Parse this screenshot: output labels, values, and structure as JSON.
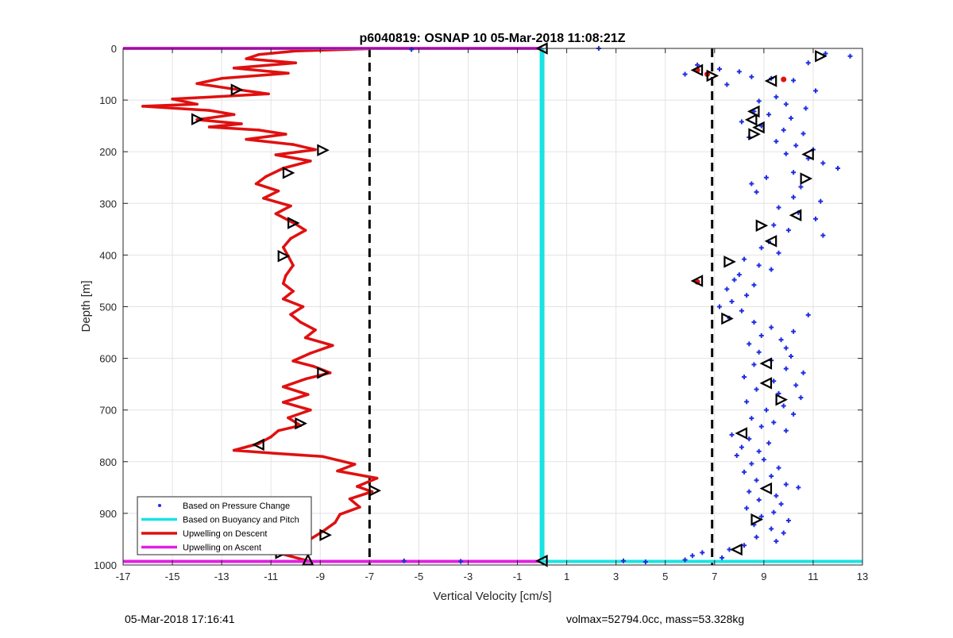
{
  "chart_data": {
    "type": "scatter",
    "title": "p6040819: OSNAP 10 05-Mar-2018 11:08:21Z",
    "xlabel": "Vertical Velocity [cm/s]",
    "ylabel": "Depth [m]",
    "xlim": [
      -17,
      13
    ],
    "ylim": [
      0,
      1000
    ],
    "y_reversed": true,
    "xticks": [
      -17,
      -15,
      -13,
      -11,
      -9,
      -7,
      -5,
      -3,
      -1,
      1,
      3,
      5,
      7,
      9,
      11,
      13
    ],
    "yticks": [
      0,
      100,
      200,
      300,
      400,
      500,
      600,
      700,
      800,
      900,
      1000
    ],
    "grid": true,
    "legend_location": "bottom-left",
    "legend": [
      {
        "label": "Based on Pressure Change",
        "color": "#1f2ee0",
        "style": "dot"
      },
      {
        "label": "Based on Buoyancy and Pitch",
        "color": "#19e3e3",
        "style": "line"
      },
      {
        "label": "Upwelling on Descent",
        "color": "#e01010",
        "style": "line"
      },
      {
        "label": "Upwelling on Ascent",
        "color": "#e020e0",
        "style": "line"
      }
    ],
    "threshold_lines": [
      -7,
      6.9
    ],
    "series": [
      {
        "name": "Upwelling on Descent",
        "color": "#e01010",
        "kind": "line",
        "points": [
          [
            -6.6,
            0
          ],
          [
            -10,
            5
          ],
          [
            -11.5,
            12
          ],
          [
            -12,
            20
          ],
          [
            -10,
            28
          ],
          [
            -12.5,
            38
          ],
          [
            -10.3,
            48
          ],
          [
            -13,
            58
          ],
          [
            -14,
            68
          ],
          [
            -12.6,
            78
          ],
          [
            -11.1,
            88
          ],
          [
            -15,
            98
          ],
          [
            -14,
            108
          ],
          [
            -16.2,
            112
          ],
          [
            -13.5,
            120
          ],
          [
            -12.5,
            128
          ],
          [
            -14,
            138
          ],
          [
            -12.2,
            146
          ],
          [
            -13.5,
            152
          ],
          [
            -11.5,
            158
          ],
          [
            -10.4,
            166
          ],
          [
            -12,
            176
          ],
          [
            -10.1,
            186
          ],
          [
            -9.2,
            196
          ],
          [
            -10.8,
            206
          ],
          [
            -9.4,
            218
          ],
          [
            -10.5,
            232
          ],
          [
            -11.2,
            248
          ],
          [
            -11.6,
            262
          ],
          [
            -10.7,
            276
          ],
          [
            -11.3,
            290
          ],
          [
            -10.2,
            305
          ],
          [
            -10.8,
            320
          ],
          [
            -10,
            340
          ],
          [
            -9.6,
            352
          ],
          [
            -10.2,
            368
          ],
          [
            -10.5,
            385
          ],
          [
            -10.3,
            402
          ],
          [
            -10.1,
            420
          ],
          [
            -10.4,
            440
          ],
          [
            -10.5,
            455
          ],
          [
            -10.1,
            470
          ],
          [
            -10.5,
            485
          ],
          [
            -9.7,
            500
          ],
          [
            -10.2,
            515
          ],
          [
            -9.8,
            530
          ],
          [
            -9.2,
            545
          ],
          [
            -9.6,
            560
          ],
          [
            -8.5,
            575
          ],
          [
            -9.4,
            590
          ],
          [
            -10.1,
            605
          ],
          [
            -9.3,
            615
          ],
          [
            -8.6,
            628
          ],
          [
            -9.6,
            640
          ],
          [
            -10.5,
            655
          ],
          [
            -9.5,
            670
          ],
          [
            -10.5,
            685
          ],
          [
            -9.4,
            700
          ],
          [
            -10.3,
            715
          ],
          [
            -9.8,
            730
          ],
          [
            -10.7,
            740
          ],
          [
            -11,
            752
          ],
          [
            -11.5,
            765
          ],
          [
            -12.5,
            778
          ],
          [
            -10.8,
            784
          ],
          [
            -8.9,
            790
          ],
          [
            -7.6,
            805
          ],
          [
            -8.3,
            818
          ],
          [
            -6.7,
            832
          ],
          [
            -7.5,
            848
          ],
          [
            -6.9,
            858
          ],
          [
            -7.8,
            872
          ],
          [
            -7.4,
            888
          ],
          [
            -8.2,
            902
          ],
          [
            -8.4,
            918
          ],
          [
            -8.9,
            935
          ],
          [
            -9.4,
            950
          ],
          [
            -10.1,
            965
          ],
          [
            -10.6,
            978
          ],
          [
            -9.5,
            992
          ]
        ]
      },
      {
        "name": "Upwelling on Ascent",
        "color": "#e020e0",
        "kind": "hline",
        "depths": [
          0,
          993
        ]
      },
      {
        "name": "Based on Buoyancy and Pitch",
        "color": "#19e3e3",
        "kind": "vline",
        "x": 0,
        "hline_depth": 993
      },
      {
        "name": "Based on Pressure Change",
        "color": "#1f2ee0",
        "kind": "dots",
        "points": [
          [
            2.3,
            0
          ],
          [
            -5.3,
            2
          ],
          [
            11.5,
            10
          ],
          [
            12.5,
            15
          ],
          [
            10.8,
            28
          ],
          [
            6.3,
            32
          ],
          [
            7.2,
            40
          ],
          [
            8,
            45
          ],
          [
            5.8,
            50
          ],
          [
            8.5,
            55
          ],
          [
            9.3,
            58
          ],
          [
            10.2,
            62
          ],
          [
            7.5,
            70
          ],
          [
            11.1,
            82
          ],
          [
            9.5,
            94
          ],
          [
            8.8,
            102
          ],
          [
            9.9,
            108
          ],
          [
            10.7,
            116
          ],
          [
            8.6,
            122
          ],
          [
            9.2,
            128
          ],
          [
            10.1,
            135
          ],
          [
            8.1,
            142
          ],
          [
            8.9,
            150
          ],
          [
            9.8,
            158
          ],
          [
            10.6,
            165
          ],
          [
            8.4,
            172
          ],
          [
            9.5,
            180
          ],
          [
            10.3,
            188
          ],
          [
            11,
            196
          ],
          [
            9.9,
            204
          ],
          [
            10.8,
            213
          ],
          [
            11.4,
            222
          ],
          [
            12,
            232
          ],
          [
            10.2,
            240
          ],
          [
            9.1,
            250
          ],
          [
            8.5,
            262
          ],
          [
            10.5,
            268
          ],
          [
            8.7,
            278
          ],
          [
            10.2,
            288
          ],
          [
            11.3,
            296
          ],
          [
            9.6,
            308
          ],
          [
            10.4,
            318
          ],
          [
            11.1,
            330
          ],
          [
            9.4,
            342
          ],
          [
            10,
            352
          ],
          [
            11.4,
            362
          ],
          [
            9.2,
            374
          ],
          [
            8.9,
            386
          ],
          [
            9.6,
            396
          ],
          [
            8.2,
            408
          ],
          [
            8.8,
            420
          ],
          [
            9.3,
            428
          ],
          [
            8,
            438
          ],
          [
            7.8,
            448
          ],
          [
            8.6,
            458
          ],
          [
            7.5,
            466
          ],
          [
            8.3,
            478
          ],
          [
            7.7,
            490
          ],
          [
            7.2,
            500
          ],
          [
            8.1,
            508
          ],
          [
            10.8,
            516
          ],
          [
            7.6,
            522
          ],
          [
            8.6,
            530
          ],
          [
            9.3,
            540
          ],
          [
            10.2,
            548
          ],
          [
            8.9,
            556
          ],
          [
            9.7,
            564
          ],
          [
            8.4,
            572
          ],
          [
            9.9,
            580
          ],
          [
            8.8,
            588
          ],
          [
            10.1,
            596
          ],
          [
            9.3,
            604
          ],
          [
            8.6,
            612
          ],
          [
            9.9,
            620
          ],
          [
            10.6,
            628
          ],
          [
            8.2,
            636
          ],
          [
            9.4,
            644
          ],
          [
            10.3,
            652
          ],
          [
            8.7,
            660
          ],
          [
            9.6,
            668
          ],
          [
            10.5,
            676
          ],
          [
            8.3,
            684
          ],
          [
            9.8,
            692
          ],
          [
            9.1,
            700
          ],
          [
            10.2,
            708
          ],
          [
            8.5,
            716
          ],
          [
            9.4,
            724
          ],
          [
            8.9,
            732
          ],
          [
            9.9,
            740
          ],
          [
            7.7,
            748
          ],
          [
            8.4,
            756
          ],
          [
            9.2,
            764
          ],
          [
            8.1,
            772
          ],
          [
            8.8,
            780
          ],
          [
            7.9,
            788
          ],
          [
            9,
            796
          ],
          [
            8.5,
            804
          ],
          [
            9.6,
            812
          ],
          [
            8.2,
            820
          ],
          [
            9.3,
            828
          ],
          [
            8.7,
            836
          ],
          [
            9.9,
            844
          ],
          [
            10.4,
            850
          ],
          [
            8.4,
            858
          ],
          [
            9.5,
            866
          ],
          [
            8.8,
            874
          ],
          [
            9.7,
            882
          ],
          [
            8.3,
            890
          ],
          [
            9.4,
            898
          ],
          [
            8.9,
            906
          ],
          [
            10,
            914
          ],
          [
            8.6,
            922
          ],
          [
            9.3,
            930
          ],
          [
            9.8,
            938
          ],
          [
            8.7,
            946
          ],
          [
            9.5,
            954
          ],
          [
            8.2,
            962
          ],
          [
            7.6,
            970
          ],
          [
            6.5,
            976
          ],
          [
            6.1,
            982
          ],
          [
            7.3,
            986
          ],
          [
            5.8,
            990
          ],
          [
            3.3,
            992
          ],
          [
            -3.3,
            993
          ],
          [
            -5.6,
            992
          ],
          [
            4.2,
            994
          ]
        ]
      }
    ],
    "markers": [
      {
        "x": 11.3,
        "y": 15,
        "dir": "right"
      },
      {
        "x": 6.9,
        "y": 53,
        "dir": "right"
      },
      {
        "x": 9.3,
        "y": 63,
        "dir": "left"
      },
      {
        "x": 6.3,
        "y": 42,
        "dir": "left"
      },
      {
        "x": -12.4,
        "y": 80,
        "dir": "right"
      },
      {
        "x": -14,
        "y": 137,
        "dir": "right"
      },
      {
        "x": 8.6,
        "y": 122,
        "dir": "left"
      },
      {
        "x": 8.5,
        "y": 138,
        "dir": "left"
      },
      {
        "x": 8.8,
        "y": 153,
        "dir": "left"
      },
      {
        "x": 8.6,
        "y": 166,
        "dir": "right"
      },
      {
        "x": -8.9,
        "y": 197,
        "dir": "right"
      },
      {
        "x": 10.8,
        "y": 205,
        "dir": "left"
      },
      {
        "x": -10.3,
        "y": 241,
        "dir": "right"
      },
      {
        "x": 10.7,
        "y": 252,
        "dir": "right"
      },
      {
        "x": 10.3,
        "y": 323,
        "dir": "left"
      },
      {
        "x": -10.1,
        "y": 338,
        "dir": "right"
      },
      {
        "x": 8.9,
        "y": 343,
        "dir": "right"
      },
      {
        "x": 9.3,
        "y": 373,
        "dir": "left"
      },
      {
        "x": -10.5,
        "y": 402,
        "dir": "right"
      },
      {
        "x": 7.6,
        "y": 413,
        "dir": "right"
      },
      {
        "x": 6.3,
        "y": 450,
        "dir": "left"
      },
      {
        "x": 7.5,
        "y": 523,
        "dir": "right"
      },
      {
        "x": 9.1,
        "y": 610,
        "dir": "left"
      },
      {
        "x": -8.9,
        "y": 628,
        "dir": "right"
      },
      {
        "x": 9.1,
        "y": 648,
        "dir": "left"
      },
      {
        "x": 9.7,
        "y": 680,
        "dir": "right"
      },
      {
        "x": -9.8,
        "y": 726,
        "dir": "right"
      },
      {
        "x": 8.1,
        "y": 745,
        "dir": "left"
      },
      {
        "x": -11.5,
        "y": 767,
        "dir": "left"
      },
      {
        "x": 9.1,
        "y": 852,
        "dir": "left"
      },
      {
        "x": -6.8,
        "y": 856,
        "dir": "right"
      },
      {
        "x": 8.7,
        "y": 912,
        "dir": "right"
      },
      {
        "x": -8.8,
        "y": 942,
        "dir": "right"
      },
      {
        "x": 7.9,
        "y": 970,
        "dir": "left"
      },
      {
        "x": -10.6,
        "y": 977,
        "dir": "right"
      },
      {
        "x": -9.5,
        "y": 990,
        "dir": "up"
      },
      {
        "x": 0,
        "y": 0,
        "dir": "left"
      },
      {
        "x": 0,
        "y": 992,
        "dir": "left"
      }
    ],
    "red_points": [
      [
        6.7,
        50
      ],
      [
        9.8,
        60
      ],
      [
        6.3,
        452
      ],
      [
        6.3,
        42
      ]
    ]
  },
  "footer": {
    "left": "05-Mar-2018 17:16:41",
    "right": "volmax=52794.0cc, mass=53.328kg"
  }
}
